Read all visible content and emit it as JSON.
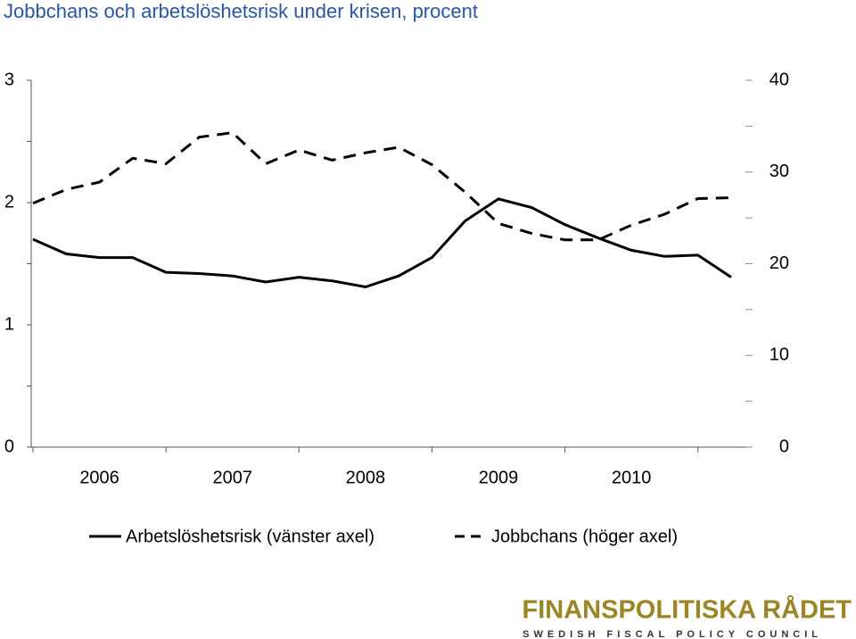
{
  "chart_data": {
    "type": "line",
    "title": "Jobbchans och arbetslöshetsrisk under krisen, procent",
    "categories": [
      null,
      null,
      "2006",
      null,
      null,
      null,
      "2007",
      null,
      null,
      null,
      "2008",
      null,
      null,
      null,
      "2009",
      null,
      null,
      null,
      "2010",
      null,
      null,
      null
    ],
    "series": [
      {
        "name": "Arbetslöshetsrisk (vänster axel)",
        "color": "#000000",
        "dash": false,
        "axis": "y",
        "values": [
          1.7,
          1.58,
          1.55,
          1.55,
          1.43,
          1.42,
          1.4,
          1.35,
          1.39,
          1.36,
          1.31,
          1.4,
          1.55,
          1.85,
          2.03,
          1.96,
          1.82,
          1.71,
          1.61,
          1.56,
          1.57,
          1.39
        ]
      },
      {
        "name": "Jobbchans (höger axel)",
        "color": "#000000",
        "dash": true,
        "axis": "y2",
        "values": [
          26.6,
          28.1,
          28.9,
          31.5,
          30.9,
          33.8,
          34.3,
          30.9,
          32.4,
          31.3,
          32.1,
          32.7,
          30.8,
          27.8,
          24.4,
          23.3,
          22.6,
          22.6,
          24.2,
          25.4,
          27.1,
          27.2
        ]
      }
    ],
    "ylim": [
      0,
      3
    ],
    "yticks": [
      0,
      1,
      2,
      3
    ],
    "y2lim": [
      0,
      40
    ],
    "y2ticks": [
      0,
      10,
      20,
      30,
      40
    ],
    "grid": false
  },
  "logo": {
    "name": "FINANSPOLITISKA RÅDET",
    "tagline": "SWEDISH FISCAL POLICY COUNCIL"
  }
}
